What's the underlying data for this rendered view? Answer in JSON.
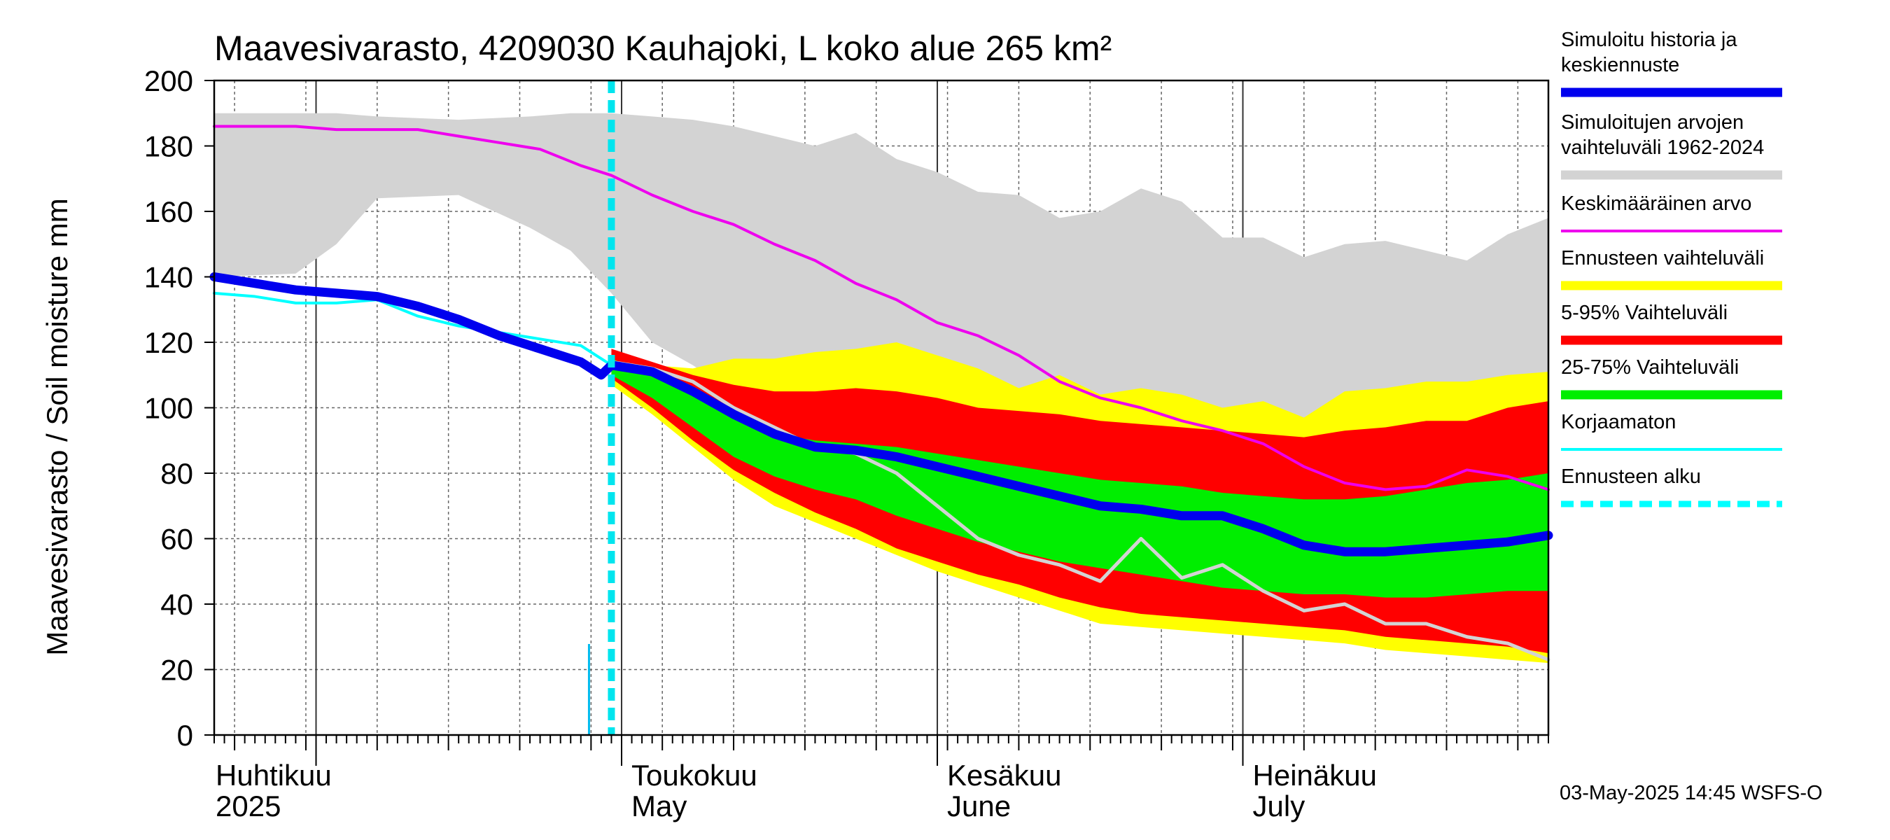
{
  "chart_data": {
    "type": "area",
    "title": "Maavesivarasto, 4209030 Kauhajoki, L koko alue 265 km²",
    "ylabel": "Maavesivarasto / Soil moisture   mm",
    "ylim": [
      0,
      200
    ],
    "yticks": [
      0,
      20,
      40,
      60,
      80,
      100,
      120,
      140,
      160,
      180,
      200
    ],
    "xlim": [
      "2025-03-22",
      "2025-07-31"
    ],
    "grid": true,
    "month_labels": [
      {
        "date": "2025-04-01",
        "fi": "Huhtikuu",
        "en": "2025"
      },
      {
        "date": "2025-05-01",
        "fi": "Toukokuu",
        "en": "May"
      },
      {
        "date": "2025-06-01",
        "fi": "Kesäkuu",
        "en": "June"
      },
      {
        "date": "2025-07-01",
        "fi": "Heinäkuu",
        "en": "July"
      }
    ],
    "forecast_start": "2025-04-30",
    "legend_position": "right",
    "series": [
      {
        "name": "Simuloitujen arvojen vaihteluväli 1962-2024",
        "role": "band",
        "color": "#d3d3d3",
        "x": [
          "2025-03-22",
          "2025-03-30",
          "2025-04-03",
          "2025-04-07",
          "2025-04-15",
          "2025-04-22",
          "2025-04-26",
          "2025-04-30",
          "2025-05-04",
          "2025-05-08",
          "2025-05-12",
          "2025-05-16",
          "2025-05-20",
          "2025-05-24",
          "2025-05-28",
          "2025-06-01",
          "2025-06-05",
          "2025-06-09",
          "2025-06-13",
          "2025-06-17",
          "2025-06-21",
          "2025-06-25",
          "2025-06-29",
          "2025-07-03",
          "2025-07-07",
          "2025-07-11",
          "2025-07-15",
          "2025-07-19",
          "2025-07-23",
          "2025-07-27",
          "2025-07-31"
        ],
        "upper": [
          190,
          190,
          190,
          189,
          188,
          189,
          190,
          190,
          189,
          188,
          186,
          183,
          180,
          184,
          176,
          172,
          166,
          165,
          158,
          160,
          167,
          163,
          152,
          152,
          146,
          150,
          151,
          148,
          145,
          153,
          158
        ],
        "lower": [
          140,
          141,
          150,
          164,
          165,
          155,
          148,
          135,
          120,
          113,
          105,
          100,
          99,
          98,
          97,
          97,
          96,
          97,
          96,
          97,
          96,
          96,
          96,
          96,
          95,
          96,
          97,
          98,
          99,
          100,
          103
        ]
      },
      {
        "name": "Ennusteen vaihteluväli",
        "role": "band",
        "color": "#ffff00",
        "x": [
          "2025-04-30",
          "2025-05-04",
          "2025-05-08",
          "2025-05-12",
          "2025-05-16",
          "2025-05-20",
          "2025-05-24",
          "2025-05-28",
          "2025-06-01",
          "2025-06-05",
          "2025-06-09",
          "2025-06-13",
          "2025-06-17",
          "2025-06-21",
          "2025-06-25",
          "2025-06-29",
          "2025-07-03",
          "2025-07-07",
          "2025-07-11",
          "2025-07-15",
          "2025-07-19",
          "2025-07-23",
          "2025-07-27",
          "2025-07-31"
        ],
        "upper": [
          115,
          113,
          112,
          115,
          115,
          117,
          118,
          120,
          116,
          112,
          106,
          110,
          104,
          106,
          104,
          100,
          102,
          97,
          105,
          106,
          108,
          108,
          110,
          111
        ],
        "lower": [
          107,
          98,
          88,
          78,
          70,
          65,
          60,
          55,
          50,
          46,
          42,
          38,
          34,
          33,
          32,
          31,
          30,
          29,
          28,
          26,
          25,
          24,
          23,
          22
        ]
      },
      {
        "name": "5-95% Vaihteluväli",
        "role": "band",
        "color": "#ff0000",
        "x": [
          "2025-04-30",
          "2025-05-04",
          "2025-05-08",
          "2025-05-12",
          "2025-05-16",
          "2025-05-20",
          "2025-05-24",
          "2025-05-28",
          "2025-06-01",
          "2025-06-05",
          "2025-06-09",
          "2025-06-13",
          "2025-06-17",
          "2025-06-21",
          "2025-06-25",
          "2025-06-29",
          "2025-07-03",
          "2025-07-07",
          "2025-07-11",
          "2025-07-15",
          "2025-07-19",
          "2025-07-23",
          "2025-07-27",
          "2025-07-31"
        ],
        "upper": [
          118,
          114,
          110,
          107,
          105,
          105,
          106,
          105,
          103,
          100,
          99,
          98,
          96,
          95,
          94,
          93,
          92,
          91,
          93,
          94,
          96,
          96,
          100,
          102
        ],
        "lower": [
          109,
          100,
          90,
          81,
          74,
          68,
          63,
          57,
          53,
          49,
          46,
          42,
          39,
          37,
          36,
          35,
          34,
          33,
          32,
          30,
          29,
          28,
          27,
          25
        ]
      },
      {
        "name": "25-75% Vaihteluväli",
        "role": "band",
        "color": "#00ee00",
        "x": [
          "2025-04-30",
          "2025-05-04",
          "2025-05-08",
          "2025-05-12",
          "2025-05-16",
          "2025-05-20",
          "2025-05-24",
          "2025-05-28",
          "2025-06-01",
          "2025-06-05",
          "2025-06-09",
          "2025-06-13",
          "2025-06-17",
          "2025-06-21",
          "2025-06-25",
          "2025-06-29",
          "2025-07-03",
          "2025-07-07",
          "2025-07-11",
          "2025-07-15",
          "2025-07-19",
          "2025-07-23",
          "2025-07-27",
          "2025-07-31"
        ],
        "upper": [
          115,
          110,
          104,
          97,
          92,
          90,
          89,
          88,
          86,
          84,
          82,
          80,
          78,
          77,
          76,
          74,
          73,
          72,
          72,
          73,
          75,
          77,
          78,
          80
        ],
        "lower": [
          110,
          103,
          94,
          85,
          79,
          75,
          72,
          67,
          63,
          59,
          56,
          53,
          51,
          49,
          47,
          45,
          44,
          43,
          43,
          42,
          42,
          43,
          44,
          44
        ]
      },
      {
        "name": "Keskimääräinen arvo",
        "role": "line",
        "color": "#ee00ee",
        "x": [
          "2025-03-22",
          "2025-03-26",
          "2025-03-30",
          "2025-04-03",
          "2025-04-07",
          "2025-04-11",
          "2025-04-15",
          "2025-04-19",
          "2025-04-23",
          "2025-04-27",
          "2025-04-30",
          "2025-05-04",
          "2025-05-08",
          "2025-05-12",
          "2025-05-16",
          "2025-05-20",
          "2025-05-24",
          "2025-05-28",
          "2025-06-01",
          "2025-06-05",
          "2025-06-09",
          "2025-06-13",
          "2025-06-17",
          "2025-06-21",
          "2025-06-25",
          "2025-06-29",
          "2025-07-03",
          "2025-07-07",
          "2025-07-11",
          "2025-07-15",
          "2025-07-19",
          "2025-07-23",
          "2025-07-27",
          "2025-07-31"
        ],
        "y": [
          186,
          186,
          186,
          185,
          185,
          185,
          183,
          181,
          179,
          174,
          171,
          165,
          160,
          156,
          150,
          145,
          138,
          133,
          126,
          122,
          116,
          108,
          103,
          100,
          96,
          93,
          89,
          82,
          77,
          75,
          76,
          81,
          79,
          75
        ]
      },
      {
        "name": "Korjaamaton",
        "role": "line",
        "color": "#00ffff",
        "x": [
          "2025-03-22",
          "2025-03-26",
          "2025-03-30",
          "2025-04-03",
          "2025-04-07",
          "2025-04-11",
          "2025-04-15",
          "2025-04-19",
          "2025-04-23",
          "2025-04-27",
          "2025-04-30"
        ],
        "y": [
          135,
          134,
          132,
          132,
          133,
          128,
          125,
          123,
          121,
          119,
          113
        ]
      },
      {
        "name": "",
        "role": "line",
        "color": "#d3d3d3",
        "x": [
          "2025-04-30",
          "2025-05-04",
          "2025-05-08",
          "2025-05-12",
          "2025-05-16",
          "2025-05-20",
          "2025-05-24",
          "2025-05-28",
          "2025-06-01",
          "2025-06-05",
          "2025-06-09",
          "2025-06-13",
          "2025-06-17",
          "2025-06-21",
          "2025-06-25",
          "2025-06-29",
          "2025-07-03",
          "2025-07-07",
          "2025-07-11",
          "2025-07-15",
          "2025-07-19",
          "2025-07-23",
          "2025-07-27",
          "2025-07-31"
        ],
        "y": [
          114,
          112,
          108,
          100,
          94,
          88,
          86,
          80,
          70,
          60,
          55,
          52,
          47,
          60,
          48,
          52,
          44,
          38,
          40,
          34,
          34,
          30,
          28,
          23
        ]
      },
      {
        "name": "Simuloitu historia ja keskiennuste",
        "role": "line",
        "color": "#0000ee",
        "x": [
          "2025-03-22",
          "2025-03-26",
          "2025-03-30",
          "2025-04-03",
          "2025-04-07",
          "2025-04-11",
          "2025-04-15",
          "2025-04-19",
          "2025-04-23",
          "2025-04-27",
          "2025-04-29",
          "2025-04-30",
          "2025-05-04",
          "2025-05-08",
          "2025-05-12",
          "2025-05-16",
          "2025-05-20",
          "2025-05-24",
          "2025-05-28",
          "2025-06-01",
          "2025-06-05",
          "2025-06-09",
          "2025-06-13",
          "2025-06-17",
          "2025-06-21",
          "2025-06-25",
          "2025-06-29",
          "2025-07-03",
          "2025-07-07",
          "2025-07-11",
          "2025-07-15",
          "2025-07-19",
          "2025-07-23",
          "2025-07-27",
          "2025-07-31"
        ],
        "y": [
          140,
          138,
          136,
          135,
          134,
          131,
          127,
          122,
          118,
          114,
          110,
          113,
          111,
          105,
          98,
          92,
          88,
          87,
          85,
          82,
          79,
          76,
          73,
          70,
          69,
          67,
          67,
          63,
          58,
          56,
          56,
          57,
          58,
          59,
          61
        ]
      }
    ],
    "legend": [
      {
        "label": "Simuloitu historia ja keskiennuste",
        "color": "#0000ee",
        "style": "thick"
      },
      {
        "label": "Simuloitujen arvojen vaihteluväli 1962-2024",
        "color": "#d3d3d3",
        "style": "thick"
      },
      {
        "label": "Keskimääräinen arvo",
        "color": "#ee00ee",
        "style": "thin"
      },
      {
        "label": "Ennusteen vaihteluväli",
        "color": "#ffff00",
        "style": "thick"
      },
      {
        "label": "5-95% Vaihteluväli",
        "color": "#ff0000",
        "style": "thick"
      },
      {
        "label": "25-75% Vaihteluväli",
        "color": "#00ee00",
        "style": "thick"
      },
      {
        "label": "Korjaamaton",
        "color": "#00ffff",
        "style": "thin"
      },
      {
        "label": "Ennusteen alku",
        "color": "#00ffff",
        "style": "dashed"
      }
    ],
    "footer": "03-May-2025 14:45 WSFS-O"
  }
}
